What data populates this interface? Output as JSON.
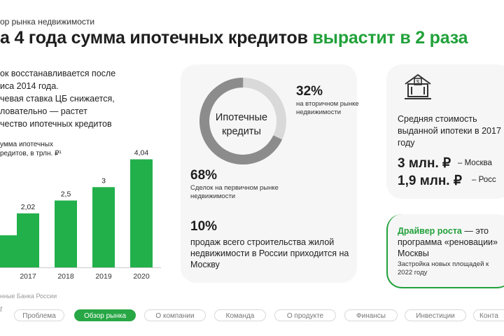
{
  "header": {
    "section_label": "ор рынка недвижимости",
    "headline_black": "а 4 года сумма ипотечных кредитов ",
    "headline_green": "вырастит в 2 раза"
  },
  "intro": {
    "lines": [
      "ок восстанавливается  после",
      "иса 2014 года.",
      "чевая ставка ЦБ снижается,",
      "ловательно  —  растет",
      "чество ипотечных  кредитов"
    ]
  },
  "chart_data": {
    "type": "bar",
    "title_lines": [
      "умма ипотечных",
      "редитов, в трлн. ₽¹"
    ],
    "categories": [
      "",
      "2017",
      "2018",
      "2019",
      "2020"
    ],
    "values": [
      1.2,
      2.02,
      2.5,
      3,
      4.04
    ],
    "value_labels": [
      "",
      "2,02",
      "2,5",
      "3",
      "4,04"
    ],
    "ylim": [
      0,
      4.5
    ],
    "color": "#22b04b"
  },
  "source": "нные Банка России",
  "donut": {
    "center_label_line1": "Ипотечные",
    "center_label_line2": "кредиты",
    "secondary_pct": "32%",
    "secondary_text": "на вторичном рынке недвижимости",
    "primary_pct": "68%",
    "primary_text": "Сделок на первичном рынке недвижимости",
    "moscow_pct": "10%",
    "moscow_text": "продаж всего строительства жилой недвижимости в России приходится на Москву",
    "colors": {
      "primary": "#8c8c8c",
      "secondary": "#d9d9d9"
    },
    "shares": [
      0.68,
      0.32
    ]
  },
  "cost": {
    "title": "Средняя стоимость выданной ипотеки в 2017 году",
    "moscow_value": "3 млн. ₽",
    "moscow_label": "– Москва",
    "russia_value": "1,9 млн. ₽",
    "russia_label": "– Росс",
    "icon": "bank-house-icon"
  },
  "driver": {
    "title_green": "Драйвер роста",
    "title_rest": " — это программа «реновации» Москвы",
    "subtitle": "Застройка новых площадей к 2022 году"
  },
  "nav": {
    "logo_fragment": "t",
    "items": [
      "Проблема",
      "Обзор рынка",
      "О компании",
      "Команда",
      "О продукте",
      "Финансы",
      "Инвестиции",
      "Конта"
    ],
    "active_index": 1
  },
  "colors": {
    "accent": "#21a13a",
    "card_bg": "#f6f6f6"
  }
}
